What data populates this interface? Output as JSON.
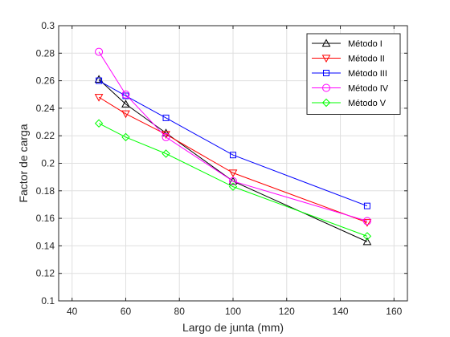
{
  "chart_data": {
    "type": "line",
    "title": "",
    "xlabel": "Largo de junta (mm)",
    "ylabel": "Factor de carga",
    "xlim": [
      35,
      165
    ],
    "ylim": [
      0.1,
      0.3
    ],
    "xticks": [
      40,
      60,
      80,
      100,
      120,
      140,
      160
    ],
    "yticks": [
      0.1,
      0.12,
      0.14,
      0.16,
      0.18,
      0.2,
      0.22,
      0.24,
      0.26,
      0.28,
      0.3
    ],
    "grid": true,
    "legend_position": "top-right",
    "x": [
      50,
      60,
      75,
      100,
      150
    ],
    "series": [
      {
        "name": "Método I",
        "marker": "triangle-up",
        "color": "#000000",
        "values": [
          0.261,
          0.243,
          0.222,
          0.187,
          0.143
        ]
      },
      {
        "name": "Método II",
        "marker": "triangle-down",
        "color": "#ff0000",
        "values": [
          0.248,
          0.236,
          0.221,
          0.193,
          0.157
        ]
      },
      {
        "name": "Método III",
        "marker": "square",
        "color": "#0000ff",
        "values": [
          0.26,
          0.249,
          0.233,
          0.206,
          0.169
        ]
      },
      {
        "name": "Método IV",
        "marker": "circle",
        "color": "#ff00ff",
        "values": [
          0.281,
          0.25,
          0.219,
          0.187,
          0.158
        ]
      },
      {
        "name": "Método V",
        "marker": "diamond",
        "color": "#00ff00",
        "values": [
          0.229,
          0.219,
          0.207,
          0.183,
          0.147
        ]
      }
    ]
  }
}
